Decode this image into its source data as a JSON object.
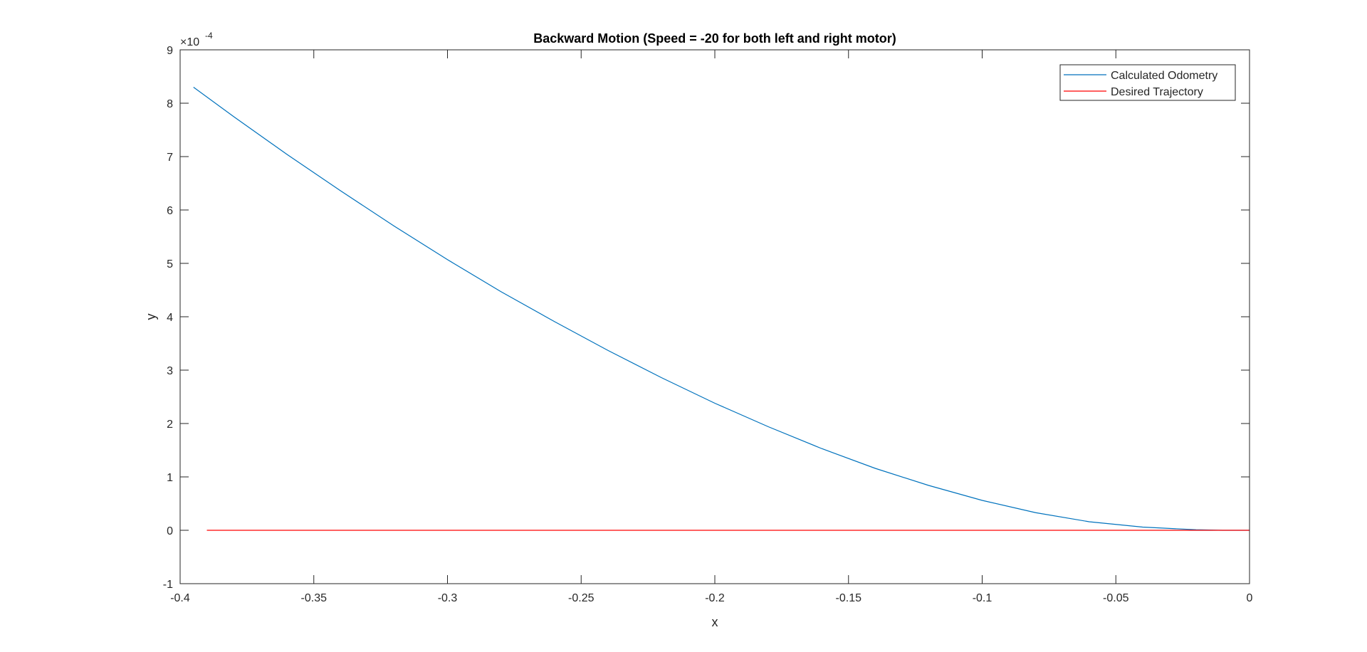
{
  "chart_data": {
    "type": "line",
    "title": "Backward Motion (Speed = -20 for both left and right motor)",
    "xlabel": "x",
    "ylabel": "y",
    "xlim": [
      -0.4,
      0
    ],
    "ylim": [
      -1,
      9
    ],
    "y_exponent_label": "×10",
    "y_exponent_power": "-4",
    "y_scale_factor": 0.0001,
    "x_ticks": [
      -0.4,
      -0.35,
      -0.3,
      -0.25,
      -0.2,
      -0.15,
      -0.1,
      -0.05,
      0
    ],
    "x_tick_labels": [
      "-0.4",
      "-0.35",
      "-0.3",
      "-0.25",
      "-0.2",
      "-0.15",
      "-0.1",
      "-0.05",
      "0"
    ],
    "y_ticks": [
      -1,
      0,
      1,
      2,
      3,
      4,
      5,
      6,
      7,
      8,
      9
    ],
    "y_tick_labels": [
      "-1",
      "0",
      "1",
      "2",
      "3",
      "4",
      "5",
      "6",
      "7",
      "8",
      "9"
    ],
    "grid": false,
    "legend_position": "top-right",
    "series": [
      {
        "name": "Calculated Odometry",
        "color": "#0072BD",
        "x": [
          -0.395,
          -0.38,
          -0.36,
          -0.34,
          -0.32,
          -0.3,
          -0.28,
          -0.26,
          -0.24,
          -0.22,
          -0.2,
          -0.18,
          -0.16,
          -0.14,
          -0.12,
          -0.1,
          -0.08,
          -0.06,
          -0.04,
          -0.02,
          -0.01,
          0
        ],
        "y": [
          8.3,
          7.75,
          7.04,
          6.36,
          5.7,
          5.07,
          4.47,
          3.91,
          3.37,
          2.86,
          2.38,
          1.94,
          1.53,
          1.16,
          0.84,
          0.56,
          0.33,
          0.16,
          0.06,
          0.01,
          0.0,
          0.0
        ]
      },
      {
        "name": "Desired Trajectory",
        "color": "#FF0000",
        "x": [
          -0.39,
          0
        ],
        "y": [
          0,
          0
        ]
      }
    ]
  }
}
